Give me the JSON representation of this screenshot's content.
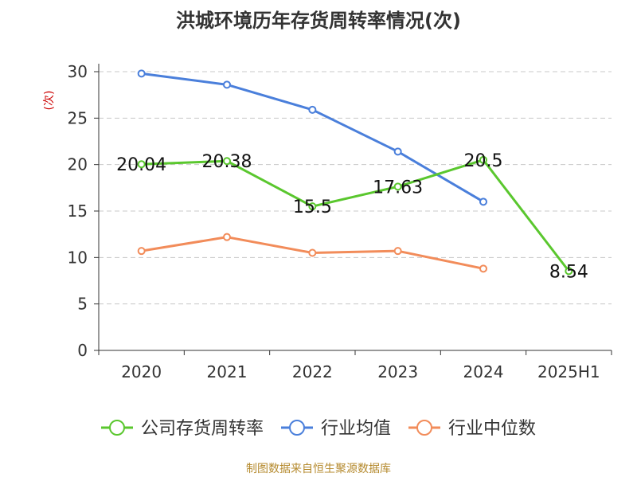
{
  "title": "洪城环境历年存货周转率情况(次)",
  "footer": "制图数据来自恒生聚源数据库",
  "colors": {
    "company": "#5ac72e",
    "industry_avg": "#4a7fdb",
    "industry_median": "#f28c5a",
    "grid": "#c8c8c8",
    "axis": "#333333",
    "ylabel": "#cc0000"
  },
  "chart_data": {
    "type": "line",
    "title": "洪城环境历年存货周转率情况(次)",
    "xlabel": "",
    "ylabel": "(次)",
    "categories": [
      "2020",
      "2021",
      "2022",
      "2023",
      "2024",
      "2025H1"
    ],
    "ylim": [
      0,
      30
    ],
    "yticks": [
      0,
      5,
      10,
      15,
      20,
      25,
      30
    ],
    "grid": true,
    "legend_position": "bottom",
    "series": [
      {
        "name": "公司存货周转率",
        "key": "company",
        "values": [
          20.04,
          20.38,
          15.5,
          17.63,
          20.5,
          8.54
        ],
        "labels": [
          "20.04",
          "20.38",
          "15.5",
          "17.63",
          "20.5",
          "8.54"
        ]
      },
      {
        "name": "行业均值",
        "key": "industry_avg",
        "values": [
          29.8,
          28.6,
          25.9,
          21.4,
          16.0,
          null
        ]
      },
      {
        "name": "行业中位数",
        "key": "industry_median",
        "values": [
          10.7,
          12.2,
          10.5,
          10.7,
          8.8,
          null
        ]
      }
    ]
  }
}
